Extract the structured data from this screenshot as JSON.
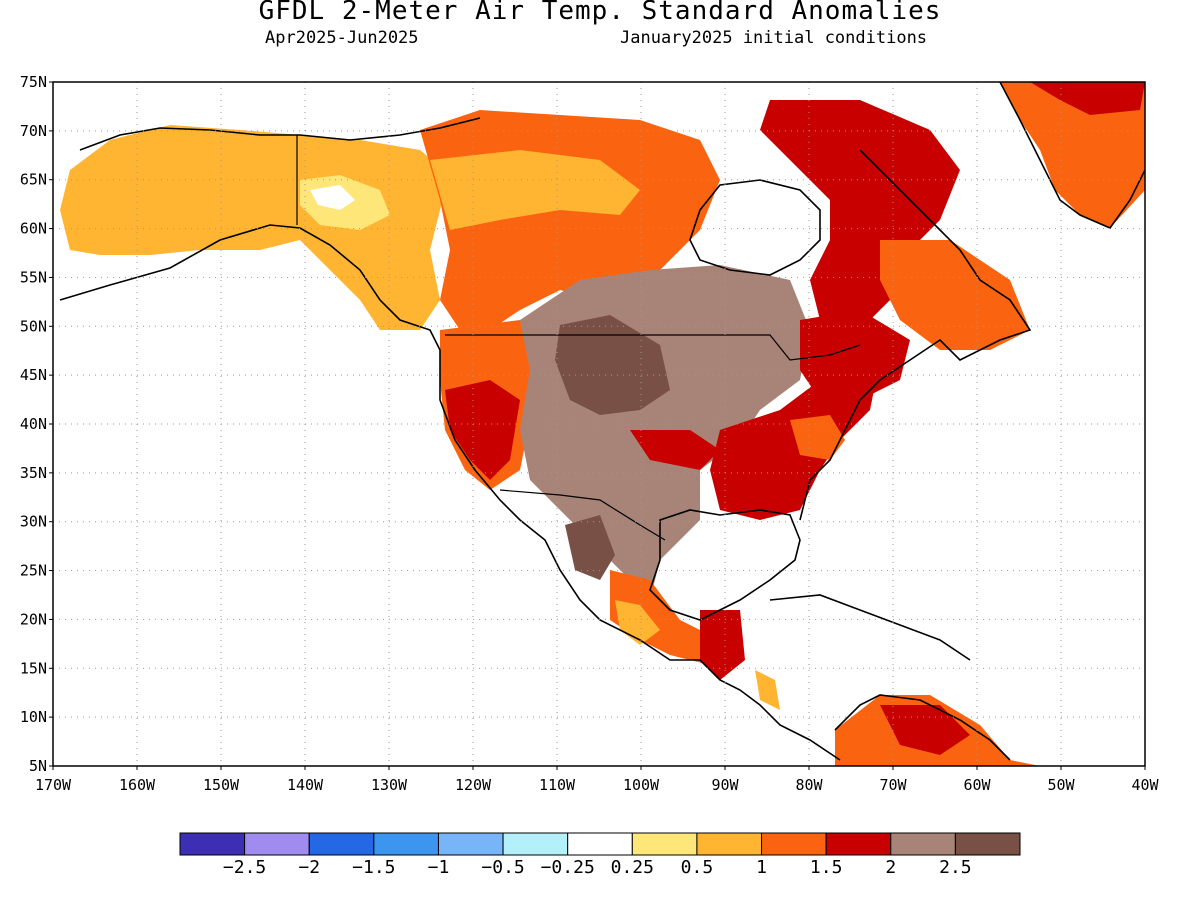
{
  "title": "GFDL 2-Meter Air Temp. Standard Anomalies",
  "subtitle_period": "Apr2025-Jun2025",
  "subtitle_init": "January2025 initial conditions",
  "lat_labels": [
    "75N",
    "70N",
    "65N",
    "60N",
    "55N",
    "50N",
    "45N",
    "40N",
    "35N",
    "30N",
    "25N",
    "20N",
    "15N",
    "10N",
    "5N"
  ],
  "lon_labels": [
    "170W",
    "160W",
    "150W",
    "140W",
    "130W",
    "120W",
    "110W",
    "100W",
    "90W",
    "80W",
    "70W",
    "60W",
    "50W",
    "40W"
  ],
  "colorbar": {
    "colors": [
      "#3c2fb4",
      "#a08cf0",
      "#2468e6",
      "#3c96f0",
      "#78b4f8",
      "#b4f0fa",
      "#ffffff",
      "#ffe678",
      "#ffb432",
      "#fa6410",
      "#c80000",
      "#a88478",
      "#785046"
    ],
    "labels": [
      "−2.5",
      "−2",
      "−1.5",
      "−1",
      "−0.5",
      "−0.25",
      "0.25",
      "0.5",
      "1",
      "1.5",
      "2",
      "2.5"
    ]
  },
  "legend_colors": {
    "land_outline": "#000000",
    "grid": "#999999"
  }
}
